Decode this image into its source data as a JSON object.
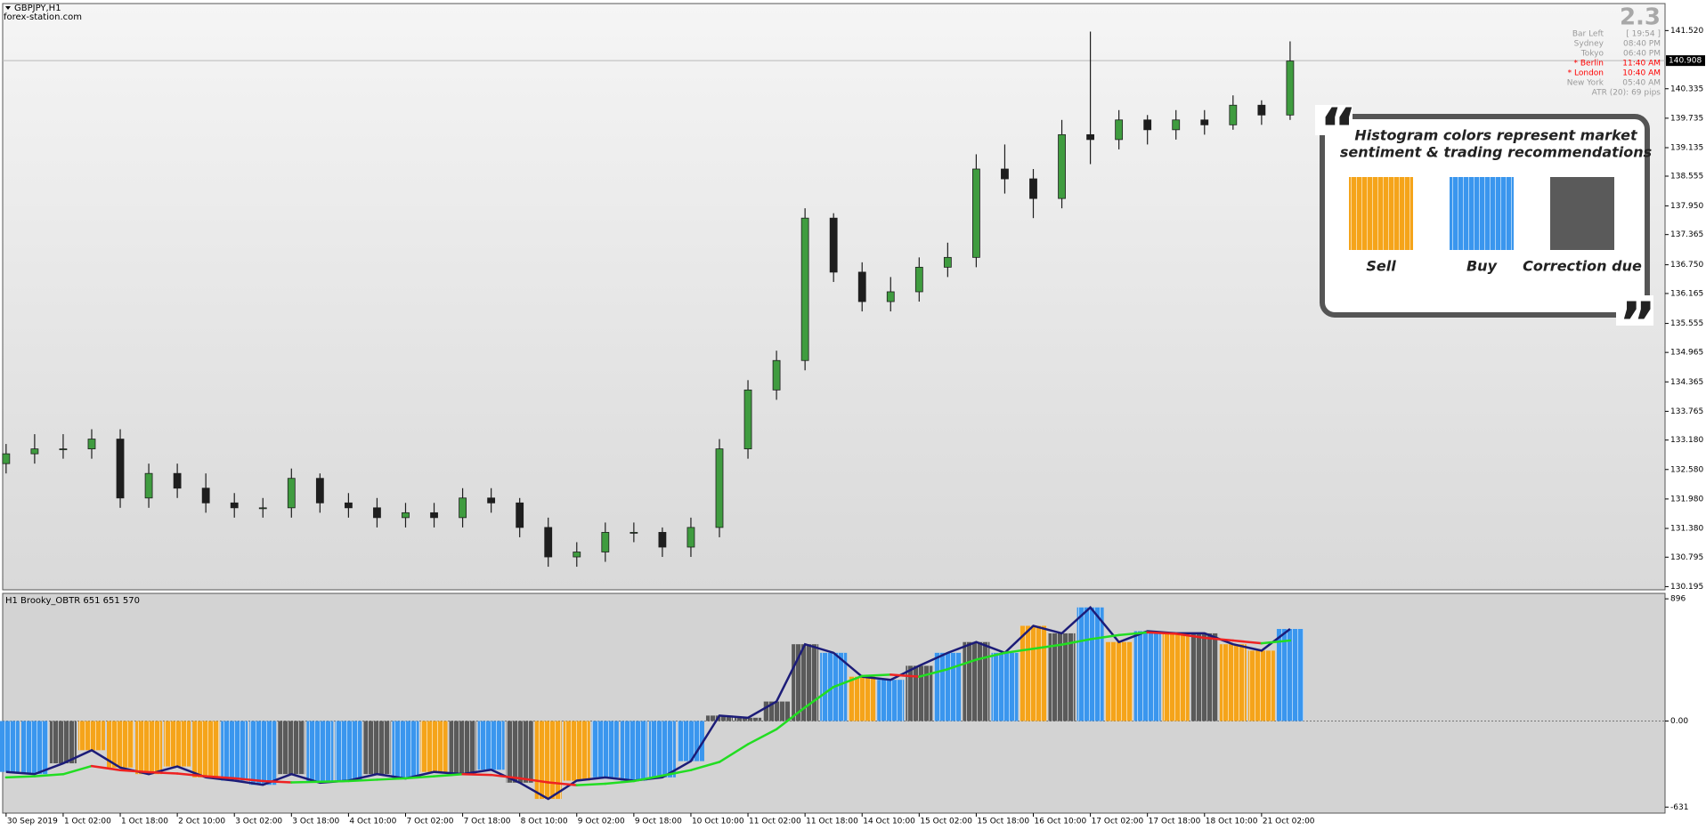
{
  "window": {
    "source": "forex-station.com"
  },
  "info_panel": {
    "version": "2.3",
    "rows": [
      {
        "label": "Bar Left",
        "value": "[ 19:54 ]",
        "color": "#9a9a9a"
      },
      {
        "label": "Sydney",
        "value": "08:40 PM",
        "color": "#9a9a9a"
      },
      {
        "label": "Tokyo",
        "value": "06:40 PM",
        "color": "#9a9a9a"
      },
      {
        "label": "* Berlin",
        "value": "11:40 AM",
        "color": "#ff0000"
      },
      {
        "label": "* London",
        "value": "10:40 AM",
        "color": "#ff0000"
      },
      {
        "label": "New York",
        "value": "05:40 AM",
        "color": "#9a9a9a"
      }
    ],
    "atr": "ATR (20): 69 pips"
  },
  "callout": {
    "quotes": [
      "“",
      "”"
    ],
    "title_lines": [
      "Histogram colors represent market",
      "sentiment & trading recommendations"
    ],
    "items": [
      {
        "label": "Sell",
        "color": "#f5a41a"
      },
      {
        "label": "Buy",
        "color": "#3a96ee"
      },
      {
        "label": "Correction due",
        "color": "#5a5a5a"
      }
    ]
  },
  "chart_data": [
    {
      "type": "candlestick",
      "title": "GBPJPY,H1",
      "x": [
        0,
        0.5,
        1,
        1.5,
        2,
        2.5,
        3,
        3.5,
        4,
        4.5,
        5,
        5.5,
        6,
        6.5,
        7,
        7.5,
        8,
        8.5,
        9,
        9.5,
        10,
        10.5,
        11,
        11.5,
        12,
        12.5,
        13,
        13.5,
        14,
        14.5,
        15,
        15.5,
        16,
        16.5,
        17,
        17.5,
        18,
        18.5,
        19,
        19.5,
        20,
        20.5,
        21,
        21.5,
        22,
        22.5
      ],
      "open": [
        132.7,
        132.9,
        133.0,
        133.0,
        133.2,
        132.0,
        132.5,
        132.2,
        131.9,
        131.8,
        131.8,
        132.4,
        131.9,
        131.8,
        131.6,
        131.7,
        131.6,
        132.0,
        131.9,
        131.4,
        130.8,
        130.9,
        131.3,
        131.3,
        131.0,
        131.4,
        133.0,
        134.2,
        134.8,
        137.7,
        136.6,
        136.0,
        136.2,
        136.7,
        136.9,
        138.7,
        138.5,
        138.1,
        139.4,
        139.3,
        139.7,
        139.5,
        139.7,
        139.6,
        140.0,
        139.8
      ],
      "high": [
        133.1,
        133.3,
        133.3,
        133.4,
        133.4,
        132.7,
        132.7,
        132.5,
        132.1,
        132.0,
        132.6,
        132.5,
        132.1,
        132.0,
        131.9,
        131.9,
        132.2,
        132.2,
        132.0,
        131.6,
        131.1,
        131.5,
        131.5,
        131.4,
        131.6,
        133.2,
        134.4,
        135.0,
        137.9,
        137.8,
        136.8,
        136.5,
        136.9,
        137.2,
        139.0,
        139.2,
        138.7,
        139.7,
        141.5,
        139.9,
        139.8,
        139.9,
        139.9,
        140.2,
        140.1,
        141.3
      ],
      "low": [
        132.5,
        132.7,
        132.8,
        132.8,
        131.8,
        131.8,
        132.0,
        131.7,
        131.6,
        131.6,
        131.6,
        131.7,
        131.6,
        131.4,
        131.4,
        131.4,
        131.4,
        131.7,
        131.2,
        130.6,
        130.6,
        130.7,
        131.1,
        130.8,
        130.8,
        131.2,
        132.8,
        134.0,
        134.6,
        136.4,
        135.8,
        135.8,
        136.0,
        136.5,
        136.7,
        138.2,
        137.7,
        137.9,
        138.8,
        139.1,
        139.2,
        139.3,
        139.4,
        139.5,
        139.6,
        139.7
      ],
      "close": [
        132.9,
        133.0,
        133.0,
        133.2,
        132.0,
        132.5,
        132.2,
        131.9,
        131.8,
        131.8,
        132.4,
        131.9,
        131.8,
        131.6,
        131.7,
        131.6,
        132.0,
        131.9,
        131.4,
        130.8,
        130.9,
        131.3,
        131.3,
        131.0,
        131.4,
        133.0,
        134.2,
        134.8,
        137.7,
        136.6,
        136.0,
        136.2,
        136.7,
        136.9,
        138.7,
        138.5,
        138.1,
        139.4,
        139.3,
        139.7,
        139.5,
        139.7,
        139.6,
        140.0,
        139.8,
        140.9
      ],
      "up_color": "#3f9c3f",
      "down_color": "#1e1e1e",
      "xlim": [
        -0.06,
        29.07
      ],
      "ylim": [
        130.13,
        142.07
      ],
      "yticks": [
        {
          "value": 141.52,
          "label": "141.520"
        },
        {
          "value": 140.335,
          "label": "140.335"
        },
        {
          "value": 139.735,
          "label": "139.735"
        },
        {
          "value": 139.135,
          "label": "139.135"
        },
        {
          "value": 138.555,
          "label": "138.555"
        },
        {
          "value": 137.95,
          "label": "137.950"
        },
        {
          "value": 137.365,
          "label": "137.365"
        },
        {
          "value": 136.75,
          "label": "136.750"
        },
        {
          "value": 136.165,
          "label": "136.165"
        },
        {
          "value": 135.555,
          "label": "135.555"
        },
        {
          "value": 134.965,
          "label": "134.965"
        },
        {
          "value": 134.365,
          "label": "134.365"
        },
        {
          "value": 133.765,
          "label": "133.765"
        },
        {
          "value": 133.18,
          "label": "133.180"
        },
        {
          "value": 132.58,
          "label": "132.580"
        },
        {
          "value": 131.98,
          "label": "131.980"
        },
        {
          "value": 131.38,
          "label": "131.380"
        },
        {
          "value": 130.795,
          "label": "130.795"
        },
        {
          "value": 130.195,
          "label": "130.195"
        }
      ],
      "last_price": {
        "value": 140.908,
        "label": "140.908"
      }
    },
    {
      "type": "histogram_oscillator",
      "title": "H1 Brooky_OBTR 651 651 570",
      "x": [
        0,
        0.5,
        1,
        1.5,
        2,
        2.5,
        3,
        3.5,
        4,
        4.5,
        5,
        5.5,
        6,
        6.5,
        7,
        7.5,
        8,
        8.5,
        9,
        9.5,
        10,
        10.5,
        11,
        11.5,
        12,
        12.5,
        13,
        13.5,
        14,
        14.5,
        15,
        15.5,
        16,
        16.5,
        17,
        17.5,
        18,
        18.5,
        19,
        19.5,
        20,
        20.5,
        21,
        21.5,
        22,
        22.5
      ],
      "values": [
        -373,
        -389,
        -310,
        -214,
        -341,
        -389,
        -333,
        -413,
        -437,
        -468,
        -389,
        -452,
        -437,
        -389,
        -421,
        -373,
        -389,
        -357,
        -452,
        -571,
        -437,
        -413,
        -437,
        -413,
        -294,
        40,
        24,
        143,
        563,
        500,
        325,
        302,
        405,
        500,
        579,
        500,
        698,
        643,
        833,
        579,
        659,
        643,
        643,
        563,
        516,
        675
      ],
      "colors": [
        "#3a96ee",
        "#3a96ee",
        "#5a5a5a",
        "#f5a41a",
        "#f5a41a",
        "#f5a41a",
        "#f5a41a",
        "#f5a41a",
        "#3a96ee",
        "#3a96ee",
        "#5a5a5a",
        "#3a96ee",
        "#3a96ee",
        "#5a5a5a",
        "#3a96ee",
        "#f5a41a",
        "#5a5a5a",
        "#3a96ee",
        "#5a5a5a",
        "#f5a41a",
        "#f5a41a",
        "#3a96ee",
        "#3a96ee",
        "#3a96ee",
        "#3a96ee",
        "#5a5a5a",
        "#5a5a5a",
        "#5a5a5a",
        "#5a5a5a",
        "#3a96ee",
        "#f5a41a",
        "#3a96ee",
        "#5a5a5a",
        "#3a96ee",
        "#5a5a5a",
        "#3a96ee",
        "#f5a41a",
        "#5a5a5a",
        "#3a96ee",
        "#f5a41a",
        "#3a96ee",
        "#f5a41a",
        "#5a5a5a",
        "#f5a41a",
        "#f5a41a",
        "#3a96ee"
      ],
      "line_color": "#1c1c78",
      "signal": {
        "values": [
          -413,
          -405,
          -390,
          -330,
          -360,
          -375,
          -385,
          -405,
          -420,
          -440,
          -450,
          -445,
          -440,
          -430,
          -420,
          -405,
          -390,
          -395,
          -420,
          -450,
          -470,
          -460,
          -440,
          -400,
          -360,
          -300,
          -170,
          -60,
          100,
          250,
          330,
          340,
          325,
          380,
          450,
          500,
          530,
          560,
          600,
          630,
          650,
          640,
          610,
          590,
          570,
          590
        ],
        "color": "#22dd22",
        "down_color": "#ee2222"
      },
      "xlim": [
        -0.06,
        29.07
      ],
      "ylim": [
        -675,
        936
      ],
      "yticks": [
        896,
        {
          "value": 0,
          "label": "0.00"
        },
        -631
      ],
      "xticks": [
        {
          "value": 0,
          "label": "30 Sep 2019"
        },
        {
          "value": 1,
          "label": "1 Oct 02:00"
        },
        {
          "value": 2,
          "label": "1 Oct 18:00"
        },
        {
          "value": 3,
          "label": "2 Oct 10:00"
        },
        {
          "value": 4,
          "label": "3 Oct 02:00"
        },
        {
          "value": 5,
          "label": "3 Oct 18:00"
        },
        {
          "value": 6,
          "label": "4 Oct 10:00"
        },
        {
          "value": 7,
          "label": "7 Oct 02:00"
        },
        {
          "value": 8,
          "label": "7 Oct 18:00"
        },
        {
          "value": 9,
          "label": "8 Oct 10:00"
        },
        {
          "value": 10,
          "label": "9 Oct 02:00"
        },
        {
          "value": 11,
          "label": "9 Oct 18:00"
        },
        {
          "value": 12,
          "label": "10 Oct 10:00"
        },
        {
          "value": 13,
          "label": "11 Oct 02:00"
        },
        {
          "value": 14,
          "label": "11 Oct 18:00"
        },
        {
          "value": 15,
          "label": "14 Oct 10:00"
        },
        {
          "value": 16,
          "label": "15 Oct 02:00"
        },
        {
          "value": 17,
          "label": "15 Oct 18:00"
        },
        {
          "value": 18,
          "label": "16 Oct 10:00"
        },
        {
          "value": 19,
          "label": "17 Oct 02:00"
        },
        {
          "value": 20,
          "label": "17 Oct 18:00"
        },
        {
          "value": 21,
          "label": "18 Oct 10:00"
        },
        {
          "value": 22,
          "label": "21 Oct 02:00"
        }
      ]
    }
  ]
}
